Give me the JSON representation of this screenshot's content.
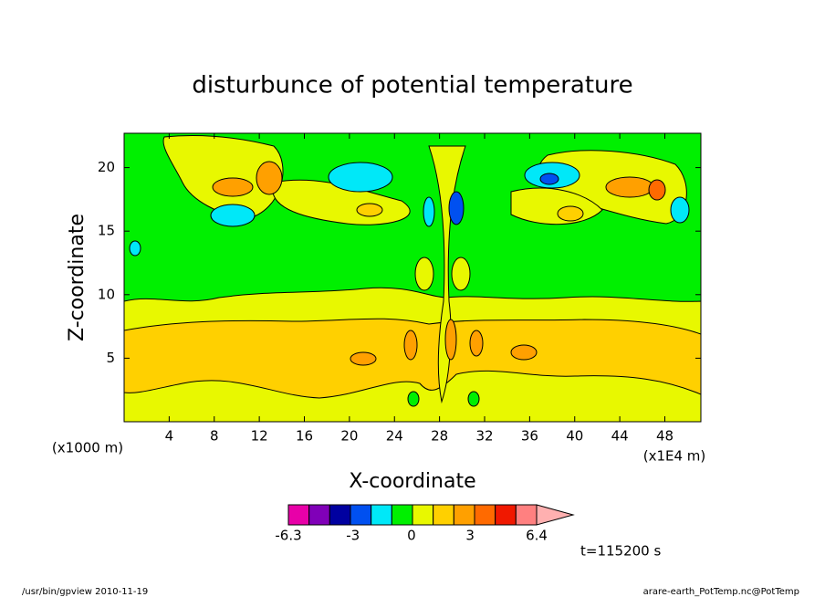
{
  "chart_data": {
    "type": "contour",
    "title": "disturbunce of potential temperature",
    "xlabel": "X-coordinate",
    "ylabel": "Z-coordinate",
    "x_unit_label": "(x1000 m)",
    "x_unit_label_right": "(x1E4 m)",
    "xlim": [
      0,
      51.2
    ],
    "xticks": [
      4,
      8,
      12,
      16,
      20,
      24,
      28,
      32,
      36,
      40,
      44,
      48
    ],
    "ylim": [
      0,
      22.7
    ],
    "yticks": [
      5,
      10,
      15,
      20
    ],
    "colorbar": {
      "range": [
        -6.3,
        6.4
      ],
      "ticks": [
        -6.3,
        -3,
        0,
        3,
        6.4
      ],
      "colors": [
        "#e800a8",
        "#8000b8",
        "#0000a0",
        "#0050f0",
        "#00e8f8",
        "#00f000",
        "#e8f800",
        "#ffd000",
        "#ffa000",
        "#ff6a00",
        "#f01800",
        "#ff8080",
        "#ffb0b0"
      ]
    },
    "annotation": "t=115200 s",
    "footer_left": "/usr/bin/gpview  2010-11-19",
    "footer_right": "arare-earth_PotTemp.nc@PotTemp"
  }
}
